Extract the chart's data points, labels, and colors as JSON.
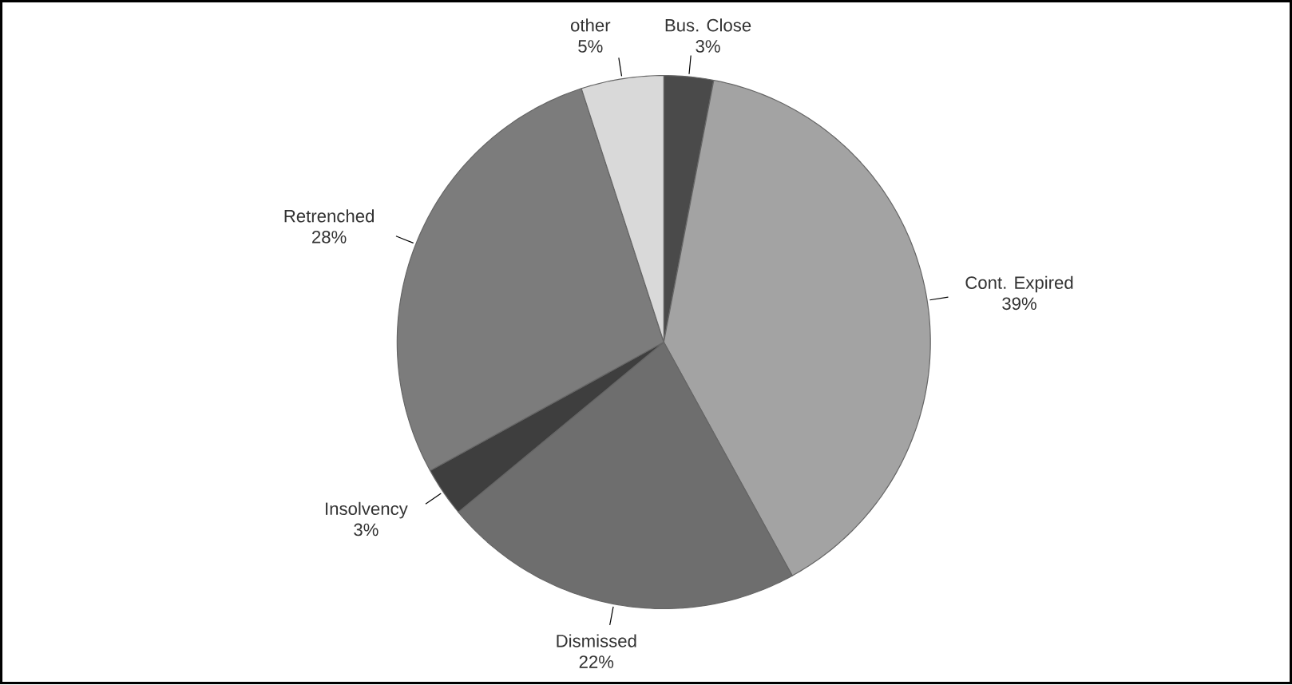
{
  "chart_data": {
    "type": "pie",
    "categories": [
      "Bus. Close",
      "Cont. Expired",
      "Dismissed",
      "Insolvency",
      "Retrenched",
      "other"
    ],
    "values": [
      3,
      39,
      22,
      3,
      28,
      5
    ],
    "value_labels": [
      "3%",
      "39%",
      "22%",
      "3%",
      "28%",
      "5%"
    ],
    "colors": [
      "#4a4a4a",
      "#a3a3a3",
      "#6e6e6e",
      "#3e3e3e",
      "#7c7c7c",
      "#d9d9d9"
    ]
  }
}
